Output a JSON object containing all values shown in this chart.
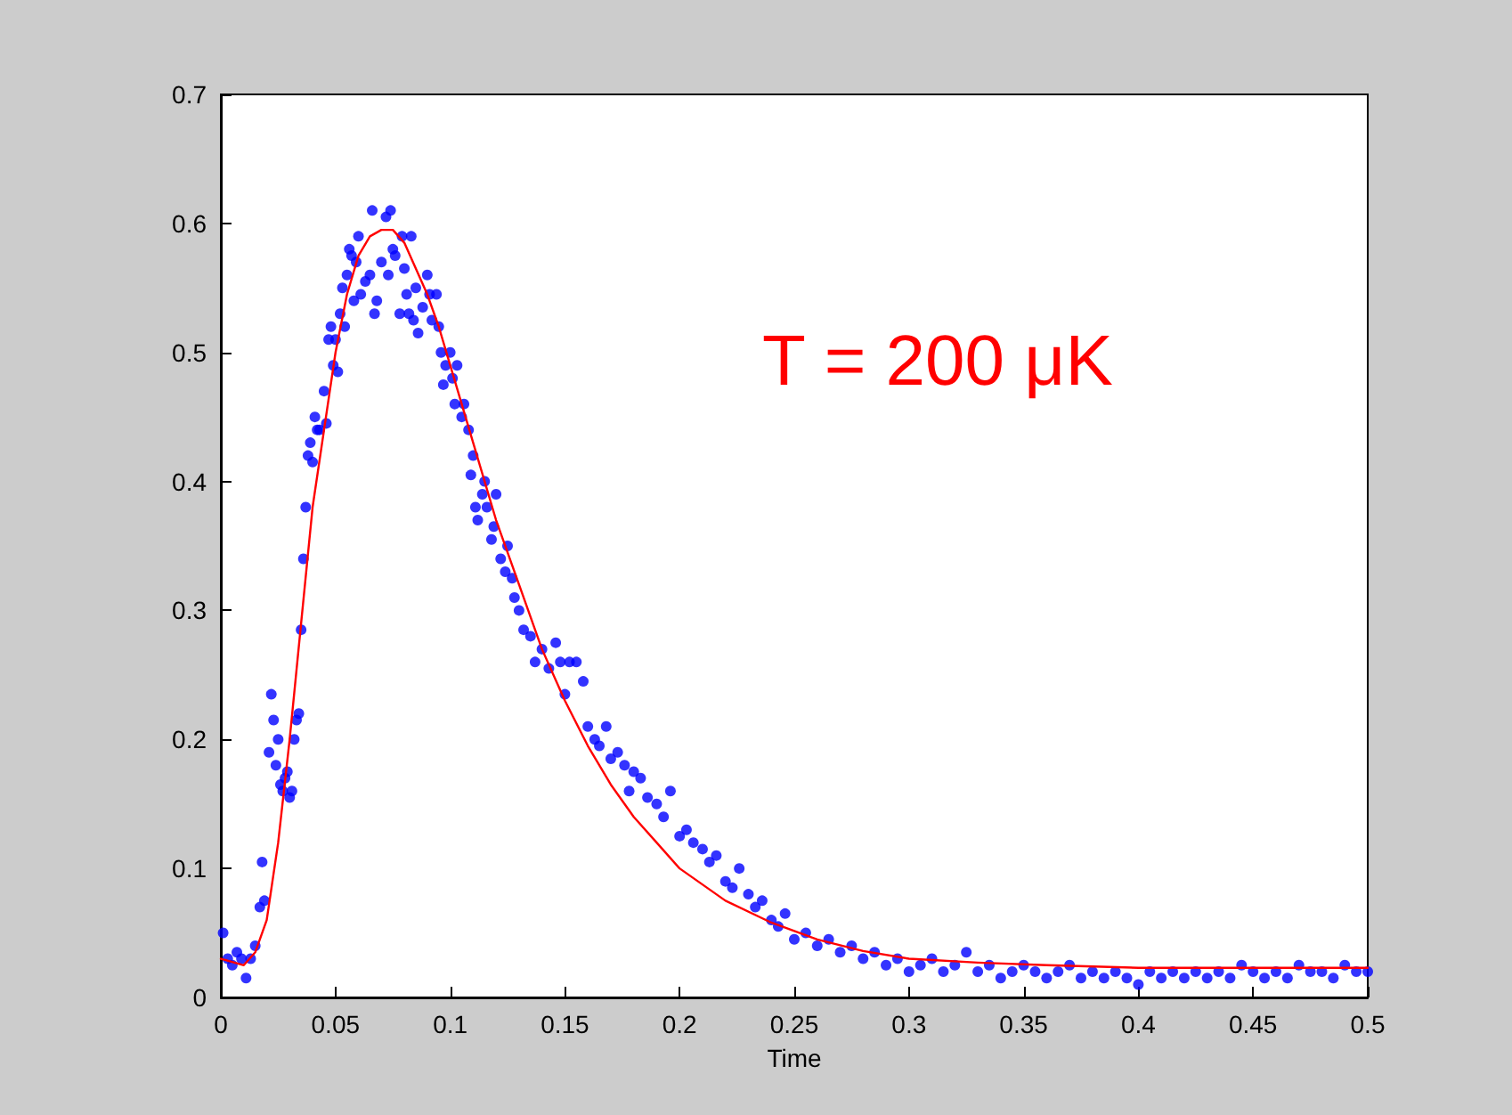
{
  "chart_data": {
    "type": "scatter",
    "xlabel": "Time",
    "annotations": [
      "T = 200 μK"
    ],
    "xlim": [
      0,
      0.5
    ],
    "xticks": [
      0,
      0.05,
      0.1,
      0.15,
      0.2,
      0.25,
      0.3,
      0.35,
      0.4,
      0.45,
      0.5
    ],
    "ylim": [
      0,
      0.7
    ],
    "yticks": [
      0,
      0.1,
      0.2,
      0.3,
      0.4,
      0.5,
      0.6,
      0.7
    ],
    "grid": false,
    "marker": "circle",
    "series": [
      {
        "color": "#0000ff",
        "x": [
          0.001,
          0.003,
          0.005,
          0.007,
          0.009,
          0.011,
          0.013,
          0.015,
          0.017,
          0.018,
          0.019,
          0.021,
          0.022,
          0.023,
          0.024,
          0.025,
          0.026,
          0.027,
          0.028,
          0.029,
          0.03,
          0.031,
          0.032,
          0.033,
          0.034,
          0.035,
          0.036,
          0.037,
          0.038,
          0.039,
          0.04,
          0.041,
          0.042,
          0.043,
          0.045,
          0.046,
          0.047,
          0.048,
          0.049,
          0.05,
          0.051,
          0.052,
          0.053,
          0.054,
          0.055,
          0.056,
          0.057,
          0.058,
          0.059,
          0.06,
          0.061,
          0.063,
          0.065,
          0.066,
          0.067,
          0.068,
          0.07,
          0.072,
          0.073,
          0.074,
          0.075,
          0.076,
          0.078,
          0.079,
          0.08,
          0.081,
          0.082,
          0.083,
          0.084,
          0.085,
          0.086,
          0.088,
          0.09,
          0.091,
          0.092,
          0.094,
          0.095,
          0.096,
          0.097,
          0.098,
          0.1,
          0.101,
          0.102,
          0.103,
          0.105,
          0.106,
          0.108,
          0.109,
          0.11,
          0.111,
          0.112,
          0.114,
          0.115,
          0.116,
          0.118,
          0.119,
          0.12,
          0.122,
          0.124,
          0.125,
          0.127,
          0.128,
          0.13,
          0.132,
          0.135,
          0.137,
          0.14,
          0.143,
          0.146,
          0.148,
          0.15,
          0.152,
          0.155,
          0.158,
          0.16,
          0.163,
          0.165,
          0.168,
          0.17,
          0.173,
          0.176,
          0.178,
          0.18,
          0.183,
          0.186,
          0.19,
          0.193,
          0.196,
          0.2,
          0.203,
          0.206,
          0.21,
          0.213,
          0.216,
          0.22,
          0.223,
          0.226,
          0.23,
          0.233,
          0.236,
          0.24,
          0.243,
          0.246,
          0.25,
          0.255,
          0.26,
          0.265,
          0.27,
          0.275,
          0.28,
          0.285,
          0.29,
          0.295,
          0.3,
          0.305,
          0.31,
          0.315,
          0.32,
          0.325,
          0.33,
          0.335,
          0.34,
          0.345,
          0.35,
          0.355,
          0.36,
          0.365,
          0.37,
          0.375,
          0.38,
          0.385,
          0.39,
          0.395,
          0.4,
          0.405,
          0.41,
          0.415,
          0.42,
          0.425,
          0.43,
          0.435,
          0.44,
          0.445,
          0.45,
          0.455,
          0.46,
          0.465,
          0.47,
          0.475,
          0.48,
          0.485,
          0.49,
          0.495,
          0.5
        ],
        "values": [
          0.05,
          0.03,
          0.025,
          0.035,
          0.03,
          0.015,
          0.03,
          0.04,
          0.07,
          0.105,
          0.075,
          0.19,
          0.235,
          0.215,
          0.18,
          0.2,
          0.165,
          0.16,
          0.17,
          0.175,
          0.155,
          0.16,
          0.2,
          0.215,
          0.22,
          0.285,
          0.34,
          0.38,
          0.42,
          0.43,
          0.415,
          0.45,
          0.44,
          0.44,
          0.47,
          0.445,
          0.51,
          0.52,
          0.49,
          0.51,
          0.485,
          0.53,
          0.55,
          0.52,
          0.56,
          0.58,
          0.575,
          0.54,
          0.57,
          0.59,
          0.545,
          0.555,
          0.56,
          0.61,
          0.53,
          0.54,
          0.57,
          0.605,
          0.56,
          0.61,
          0.58,
          0.575,
          0.53,
          0.59,
          0.565,
          0.545,
          0.53,
          0.59,
          0.525,
          0.55,
          0.515,
          0.535,
          0.56,
          0.545,
          0.525,
          0.545,
          0.52,
          0.5,
          0.475,
          0.49,
          0.5,
          0.48,
          0.46,
          0.49,
          0.45,
          0.46,
          0.44,
          0.405,
          0.42,
          0.38,
          0.37,
          0.39,
          0.4,
          0.38,
          0.355,
          0.365,
          0.39,
          0.34,
          0.33,
          0.35,
          0.325,
          0.31,
          0.3,
          0.285,
          0.28,
          0.26,
          0.27,
          0.255,
          0.275,
          0.26,
          0.235,
          0.26,
          0.26,
          0.245,
          0.21,
          0.2,
          0.195,
          0.21,
          0.185,
          0.19,
          0.18,
          0.16,
          0.175,
          0.17,
          0.155,
          0.15,
          0.14,
          0.16,
          0.125,
          0.13,
          0.12,
          0.115,
          0.105,
          0.11,
          0.09,
          0.085,
          0.1,
          0.08,
          0.07,
          0.075,
          0.06,
          0.055,
          0.065,
          0.045,
          0.05,
          0.04,
          0.045,
          0.035,
          0.04,
          0.03,
          0.035,
          0.025,
          0.03,
          0.02,
          0.025,
          0.03,
          0.02,
          0.025,
          0.035,
          0.02,
          0.025,
          0.015,
          0.02,
          0.025,
          0.02,
          0.015,
          0.02,
          0.025,
          0.015,
          0.02,
          0.015,
          0.02,
          0.015,
          0.01,
          0.02,
          0.015,
          0.02,
          0.015,
          0.02,
          0.015,
          0.02,
          0.015,
          0.025,
          0.02,
          0.015,
          0.02,
          0.015,
          0.025,
          0.02,
          0.02,
          0.015,
          0.025,
          0.02,
          0.02
        ]
      },
      {
        "type": "line",
        "color": "#ff0000",
        "marker": "none",
        "line_style": "solid",
        "x": [
          0,
          0.01,
          0.015,
          0.02,
          0.025,
          0.03,
          0.035,
          0.04,
          0.045,
          0.05,
          0.055,
          0.06,
          0.065,
          0.07,
          0.075,
          0.08,
          0.085,
          0.09,
          0.095,
          0.1,
          0.11,
          0.12,
          0.13,
          0.14,
          0.15,
          0.16,
          0.17,
          0.18,
          0.19,
          0.2,
          0.22,
          0.24,
          0.26,
          0.28,
          0.3,
          0.33,
          0.36,
          0.4,
          0.45,
          0.5
        ],
        "values": [
          0.03,
          0.025,
          0.035,
          0.06,
          0.12,
          0.2,
          0.29,
          0.38,
          0.44,
          0.5,
          0.545,
          0.575,
          0.59,
          0.595,
          0.595,
          0.585,
          0.565,
          0.545,
          0.52,
          0.49,
          0.43,
          0.37,
          0.32,
          0.27,
          0.23,
          0.195,
          0.165,
          0.14,
          0.12,
          0.1,
          0.075,
          0.058,
          0.045,
          0.036,
          0.03,
          0.027,
          0.025,
          0.023,
          0.023,
          0.023
        ]
      }
    ]
  }
}
